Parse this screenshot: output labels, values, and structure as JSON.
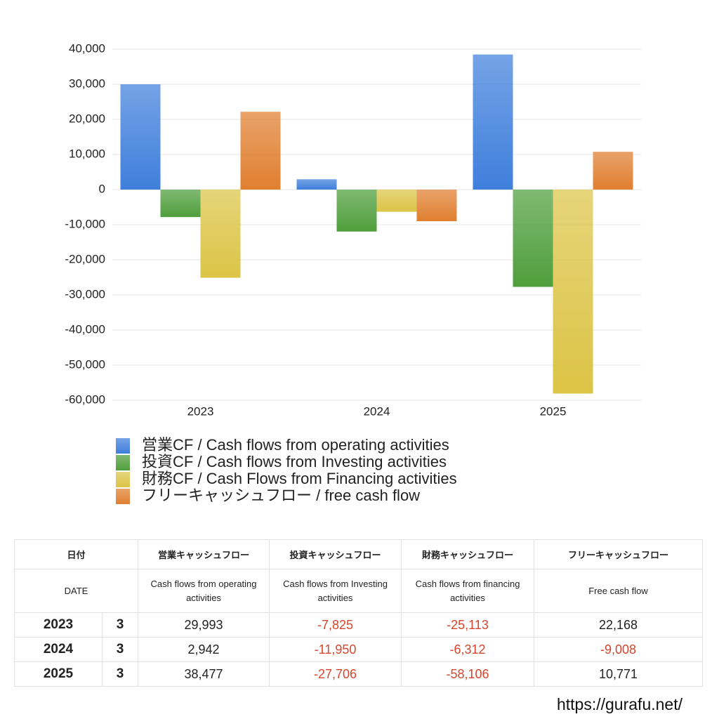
{
  "chart_data": {
    "type": "bar",
    "categories": [
      "2023",
      "2024",
      "2025"
    ],
    "series": [
      {
        "name": "営業CF / Cash flows from operating activities",
        "color": "#3f7fdc",
        "values": [
          29993,
          2942,
          38477
        ]
      },
      {
        "name": "投資CF / Cash flows from Investing activities",
        "color": "#4f9e3c",
        "values": [
          -7825,
          -11950,
          -27706
        ]
      },
      {
        "name": "財務CF / Cash Flows from Financing activities",
        "color": "#dcc446",
        "values": [
          -25113,
          -6312,
          -58106
        ]
      },
      {
        "name": "フリーキャッシュフロー / free cash flow",
        "color": "#e07f30",
        "values": [
          22168,
          -9008,
          10771
        ]
      }
    ],
    "ylim": [
      -60000,
      40000
    ],
    "yticks": [
      {
        "value": -60000,
        "label": "-60,000"
      },
      {
        "value": -50000,
        "label": "-50,000"
      },
      {
        "value": -40000,
        "label": "-40,000"
      },
      {
        "value": -30000,
        "label": "-30,000"
      },
      {
        "value": -20000,
        "label": "-20,000"
      },
      {
        "value": -10000,
        "label": "-10,000"
      },
      0,
      {
        "value": 10000,
        "label": "10,000"
      },
      {
        "value": 20000,
        "label": "20,000"
      },
      {
        "value": 30000,
        "label": "30,000"
      },
      {
        "value": 40000,
        "label": "40,000"
      }
    ],
    "grid": true,
    "legend": "bottom"
  },
  "table": {
    "header": [
      "日付",
      "営業キャッシュフロー",
      "投資キャッシュフロー",
      "財務キャッシュフロー",
      "フリーキャッシュフロー"
    ],
    "subheader": [
      "DATE",
      "Cash flows from operating activities",
      "Cash flows from Investing activities",
      "Cash flows from financing activities",
      "Free cash flow"
    ],
    "rows": [
      [
        "2023",
        "3",
        "29,993",
        "-7,825",
        "-25,113",
        "22,168"
      ],
      [
        "2024",
        "3",
        "2,942",
        "-11,950",
        "-6,312",
        "-9,008"
      ],
      [
        "2025",
        "3",
        "38,477",
        "-27,706",
        "-58,106",
        "10,771"
      ]
    ]
  },
  "footer": "https://gurafu.net/"
}
